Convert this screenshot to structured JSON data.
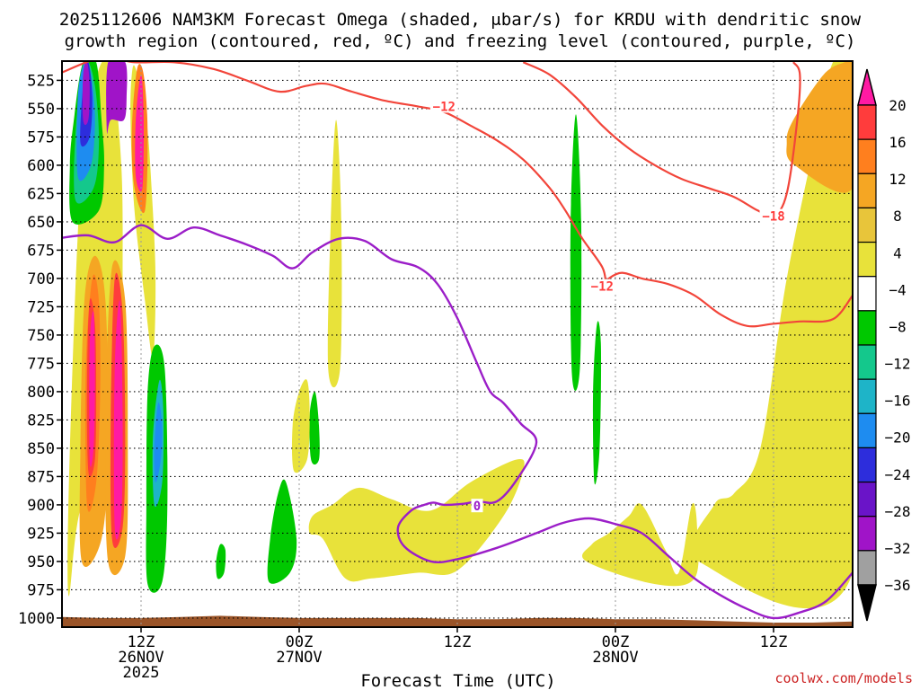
{
  "chart_data": {
    "type": "heatmap",
    "title_line1": "2025112606 NAM3KM Forecast Omega (shaded, μbar/s) for KRDU with dendritic snow",
    "title_line2": "growth region (contoured, red, ºC) and freezing level (contoured, purple, ºC)",
    "xlabel": "Forecast Time (UTC)",
    "credit": "coolwx.com/models",
    "x_unit": "forecast_hour",
    "xlim": [
      0,
      60
    ],
    "y_unit": "mb",
    "ylim": [
      508,
      1008
    ],
    "y_ticks": [
      525,
      550,
      575,
      600,
      625,
      650,
      675,
      700,
      725,
      750,
      775,
      800,
      825,
      850,
      875,
      900,
      925,
      950,
      975,
      1000
    ],
    "x_ticks": [
      {
        "hour": 6,
        "line1": "12Z",
        "line2": "26NOV",
        "line3": "2025"
      },
      {
        "hour": 18,
        "line1": "00Z",
        "line2": "27NOV",
        "line3": ""
      },
      {
        "hour": 30,
        "line1": "12Z",
        "line2": "",
        "line3": ""
      },
      {
        "hour": 42,
        "line1": "00Z",
        "line2": "28NOV",
        "line3": ""
      },
      {
        "hour": 54,
        "line1": "12Z",
        "line2": "",
        "line3": ""
      }
    ],
    "colorbar": {
      "labels": [
        "20",
        "16",
        "12",
        "8",
        "4",
        "−4",
        "−8",
        "−12",
        "−16",
        "−20",
        "−24",
        "−28",
        "−32",
        "−36"
      ],
      "colors": [
        "#ff1aa3",
        "#ff3c3c",
        "#ff7f1e",
        "#f5a623",
        "#e8c53a",
        "#e8e23a",
        "#ffffff",
        "#00c800",
        "#14c88c",
        "#1eb4c8",
        "#1e8cf0",
        "#2d2ddc",
        "#6a14c8",
        "#a014c8",
        "#a0a0a0",
        "#000000"
      ]
    },
    "omega_regions": [
      {
        "color": "#e8e23a",
        "t": [
          0.5,
          1.5,
          4.5,
          4.6,
          4.5,
          3.8,
          2.8,
          1.5,
          0.6
        ],
        "p": [
          980,
          900,
          850,
          700,
          600,
          520,
          515,
          600,
          850
        ]
      },
      {
        "color": "#e8e23a",
        "t": [
          5.6,
          6.4,
          6.8,
          7.1,
          6.9,
          6.3,
          5.5,
          5.2,
          5.3
        ],
        "p": [
          515,
          560,
          620,
          700,
          770,
          720,
          640,
          560,
          520
        ]
      },
      {
        "color": "#f5a623",
        "t": [
          1.5,
          3.0,
          3.5,
          3.3,
          2.5,
          1.7,
          1.4
        ],
        "p": [
          950,
          930,
          850,
          720,
          680,
          720,
          850
        ]
      },
      {
        "color": "#ff7f1e",
        "t": [
          1.9,
          2.6,
          2.9,
          2.8,
          2.3,
          1.8
        ],
        "p": [
          900,
          880,
          800,
          720,
          700,
          780
        ]
      },
      {
        "color": "#ff3c3c",
        "t": [
          2.0,
          2.5,
          2.6,
          2.5,
          2.1,
          1.9
        ],
        "p": [
          870,
          860,
          800,
          740,
          720,
          790
        ]
      },
      {
        "color": "#ff1aa3",
        "t": [
          2.1,
          2.4,
          2.5,
          2.4,
          2.1
        ],
        "p": [
          860,
          850,
          790,
          730,
          760
        ]
      },
      {
        "color": "#f5a623",
        "t": [
          3.5,
          4.8,
          5.0,
          4.8,
          3.8,
          3.3
        ],
        "p": [
          950,
          945,
          850,
          720,
          690,
          820
        ]
      },
      {
        "color": "#ff3c3c",
        "t": [
          3.8,
          4.6,
          4.8,
          4.6,
          4.0,
          3.7
        ],
        "p": [
          930,
          920,
          840,
          730,
          700,
          820
        ]
      },
      {
        "color": "#ff1aa3",
        "t": [
          4.0,
          4.5,
          4.6,
          4.4,
          4.0
        ],
        "p": [
          920,
          910,
          820,
          720,
          780
        ]
      },
      {
        "color": "#ff7f1e",
        "t": [
          5.5,
          6.3,
          6.5,
          6.2,
          5.7,
          5.3
        ],
        "p": [
          620,
          640,
          570,
          520,
          515,
          570
        ]
      },
      {
        "color": "#ff1aa3",
        "t": [
          5.6,
          6.1,
          6.2,
          6.0,
          5.6
        ],
        "p": [
          610,
          620,
          560,
          520,
          560
        ]
      },
      {
        "color": "#00c800",
        "t": [
          0.8,
          2.8,
          3.2,
          3.0,
          2.6,
          1.6,
          0.9,
          0.6
        ],
        "p": [
          650,
          640,
          600,
          560,
          509,
          509,
          560,
          600
        ]
      },
      {
        "color": "#14c88c",
        "t": [
          1.0,
          2.4,
          2.8,
          2.5,
          1.8,
          1.1
        ],
        "p": [
          630,
          620,
          580,
          530,
          509,
          560
        ]
      },
      {
        "color": "#1e8cf0",
        "t": [
          1.2,
          2.2,
          2.5,
          2.2,
          1.7,
          1.2
        ],
        "p": [
          610,
          600,
          560,
          520,
          509,
          540
        ]
      },
      {
        "color": "#2d2ddc",
        "t": [
          1.4,
          2.1,
          2.3,
          2.0,
          1.6
        ],
        "p": [
          580,
          575,
          540,
          509,
          530
        ]
      },
      {
        "color": "#a014c8",
        "t": [
          1.6,
          2.0,
          2.1,
          1.9,
          1.6
        ],
        "p": [
          560,
          560,
          530,
          509,
          520
        ]
      },
      {
        "color": "#000000",
        "t": [
          3.7,
          4.6,
          4.6,
          4.2,
          3.7
        ],
        "p": [
          550,
          550,
          509,
          509,
          530
        ]
      },
      {
        "color": "#a014c8",
        "t": [
          3.4,
          3.7,
          4.7,
          4.9,
          4.8,
          3.5
        ],
        "p": [
          570,
          560,
          560,
          540,
          509,
          509
        ]
      },
      {
        "color": "#00c800",
        "t": [
          6.5,
          7.6,
          8.0,
          7.8,
          7.0,
          6.5,
          6.4
        ],
        "p": [
          970,
          968,
          900,
          780,
          760,
          800,
          900
        ]
      },
      {
        "color": "#1eb4c8",
        "t": [
          7.0,
          7.6,
          7.7,
          7.4,
          6.9
        ],
        "p": [
          900,
          880,
          820,
          790,
          840
        ]
      },
      {
        "color": "#1e8cf0",
        "t": [
          7.1,
          7.5,
          7.6,
          7.3,
          7.0
        ],
        "p": [
          880,
          860,
          830,
          810,
          850
        ]
      },
      {
        "color": "#00c800",
        "t": [
          15.7,
          17.3,
          17.8,
          17.0,
          16.4,
          15.8
        ],
        "p": [
          968,
          960,
          930,
          880,
          890,
          930
        ]
      },
      {
        "color": "#00c800",
        "t": [
          18.9,
          19.5,
          19.5,
          19.2,
          18.8
        ],
        "p": [
          860,
          860,
          830,
          800,
          820
        ]
      },
      {
        "color": "#00c800",
        "t": [
          38.7,
          39.3,
          39.4,
          39.0,
          38.6
        ],
        "p": [
          785,
          780,
          650,
          555,
          650
        ]
      },
      {
        "color": "#00c800",
        "t": [
          40.4,
          40.8,
          40.9,
          40.6,
          40.3
        ],
        "p": [
          880,
          850,
          760,
          740,
          800
        ]
      },
      {
        "color": "#00c800",
        "t": [
          11.8,
          12.3,
          12.4,
          12.0,
          11.7
        ],
        "p": [
          965,
          960,
          940,
          935,
          950
        ]
      },
      {
        "color": "#e8e23a",
        "t": [
          18.8,
          19.8,
          21.5,
          23.5,
          27.0,
          30.0,
          33.5,
          35.0,
          34.5,
          31.0,
          28.0,
          25.0,
          22.5,
          20.5,
          19.0
        ],
        "p": [
          925,
          930,
          965,
          965,
          960,
          958,
          910,
          870,
          860,
          880,
          905,
          895,
          885,
          900,
          910
        ]
      },
      {
        "color": "#e8e23a",
        "t": [
          20.2,
          21.1,
          21.2,
          20.8,
          20.4
        ],
        "p": [
          780,
          780,
          650,
          560,
          650
        ]
      },
      {
        "color": "#e8e23a",
        "t": [
          17.6,
          18.6,
          18.8,
          18.6,
          18.0,
          17.5
        ],
        "p": [
          870,
          860,
          820,
          790,
          800,
          830
        ]
      },
      {
        "color": "#e8e23a",
        "t": [
          39.8,
          45.0,
          48.0,
          48.2,
          47.8,
          46.8,
          45.8,
          44.0,
          43.0,
          41.5,
          40.2
        ],
        "p": [
          950,
          970,
          965,
          920,
          900,
          960,
          940,
          900,
          910,
          925,
          935
        ]
      },
      {
        "color": "#e8e23a",
        "t": [
          48.3,
          60.0,
          60.0,
          59.5,
          58.5,
          57.5,
          55.0,
          53.0,
          51.0,
          49.5
        ],
        "p": [
          950,
          960,
          520,
          509,
          509,
          560,
          700,
          850,
          890,
          900
        ]
      },
      {
        "color": "#f5a623",
        "t": [
          55.6,
          60.0,
          60.0,
          59.4,
          57.8,
          55.5,
          55.0
        ],
        "p": [
          600,
          620,
          509,
          509,
          520,
          560,
          580
        ]
      }
    ],
    "dgz_contour_minus12": {
      "t": [
        0.0,
        3.0,
        5.5,
        8.5,
        11.5,
        14.0,
        16.5,
        18.5,
        20.0,
        22.0,
        24.5,
        27.0,
        29.0,
        31.0,
        33.0,
        35.0,
        37.0,
        38.2,
        39.5,
        41.0,
        41.3,
        41.5,
        42.5,
        44.0,
        46.0,
        48.0,
        50.0,
        52.0,
        54.0,
        56.0,
        58.5,
        60.0
      ],
      "p": [
        518,
        505,
        509,
        509,
        515,
        525,
        535,
        530,
        528,
        535,
        543,
        548,
        553,
        565,
        578,
        595,
        620,
        640,
        665,
        690,
        705,
        700,
        695,
        700,
        705,
        715,
        732,
        742,
        740,
        738,
        736,
        715
      ]
    },
    "dgz_contour_minus18": {
      "t": [
        35.0,
        37.0,
        39.0,
        41.0,
        43.0,
        45.0,
        47.0,
        49.0,
        51.0,
        52.8,
        54.0,
        55.0,
        55.8,
        56.0,
        55.5
      ],
      "p": [
        509,
        520,
        540,
        565,
        585,
        600,
        612,
        620,
        628,
        640,
        645,
        625,
        560,
        520,
        509
      ]
    },
    "freezing_level_0C": {
      "t": [
        0.0,
        2.0,
        4.0,
        6.0,
        8.0,
        10.0,
        12.0,
        14.0,
        16.0,
        17.5,
        19.0,
        21.0,
        23.0,
        25.0,
        27.0,
        28.5,
        30.0,
        31.5,
        32.5,
        33.5,
        34.8,
        36.0,
        34.5,
        33.0,
        31.5,
        30.5,
        29.0,
        28.2,
        27.5,
        26.5,
        25.5,
        26.0,
        28.0,
        30.0,
        33.0,
        36.0,
        38.0,
        40.0,
        42.0,
        44.0,
        46.0,
        48.0,
        50.0,
        52.0,
        54.0,
        56.0,
        58.0,
        60.0
      ],
      "p": [
        664,
        662,
        668,
        653,
        665,
        655,
        662,
        670,
        680,
        691,
        677,
        665,
        667,
        683,
        690,
        705,
        735,
        775,
        800,
        810,
        828,
        845,
        878,
        897,
        897,
        899,
        900,
        898,
        900,
        905,
        920,
        937,
        950,
        948,
        938,
        925,
        916,
        912,
        917,
        925,
        945,
        965,
        980,
        992,
        1000,
        995,
        985,
        960
      ]
    },
    "surface_level": {
      "t": [
        0,
        3,
        6,
        9,
        12,
        15,
        18,
        21,
        24,
        27,
        30,
        33,
        36,
        39,
        42,
        45,
        48,
        51,
        54,
        57,
        60
      ],
      "p": [
        999,
        1000,
        1000,
        999,
        998,
        999,
        1000,
        1000,
        1000,
        1000,
        1001,
        1001,
        1000,
        1000,
        1001,
        1001,
        1002,
        1003,
        1004,
        1004,
        1003
      ]
    },
    "contour_labels": [
      {
        "text": "−12",
        "t": 29.0,
        "p": 548,
        "color": "#ff3c3c"
      },
      {
        "text": "−12",
        "t": 41.0,
        "p": 707,
        "color": "#ff3c3c"
      },
      {
        "text": "−18",
        "t": 54.0,
        "p": 645,
        "color": "#ff3c3c"
      },
      {
        "text": "0",
        "t": 31.5,
        "p": 901,
        "color": "#9b1ec8"
      }
    ]
  }
}
